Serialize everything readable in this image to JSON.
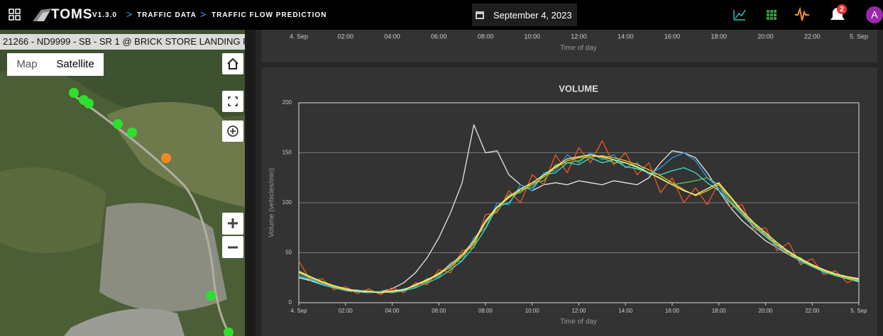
{
  "header": {
    "app": "TOMS",
    "version": "V1.3.0",
    "breadcrumbs": [
      "TRAFFIC DATA",
      "TRAFFIC FLOW PREDICTION"
    ],
    "date": "September 4, 2023",
    "notifications": 2,
    "avatar": "A"
  },
  "map_panel": {
    "station": "21266 - ND9999 - SB - SR 1 @ BRICK STORE LANDING R",
    "map_types": [
      "Map",
      "Satellite"
    ]
  },
  "top_chart": {
    "xlim": [
      0,
      24
    ],
    "xticks": [
      {
        "value": 0,
        "label": "4. Sep"
      },
      {
        "value": 2,
        "label": "02:00"
      },
      {
        "value": 4,
        "label": "04:00"
      },
      {
        "value": 6,
        "label": "06:00"
      },
      {
        "value": 8,
        "label": "08:00"
      },
      {
        "value": 10,
        "label": "10:00"
      },
      {
        "value": 12,
        "label": "12:00"
      },
      {
        "value": 14,
        "label": "14:00"
      },
      {
        "value": 16,
        "label": "16:00"
      },
      {
        "value": 18,
        "label": "18:00"
      },
      {
        "value": 20,
        "label": "20:00"
      },
      {
        "value": 22,
        "label": "22:00"
      },
      {
        "value": 24,
        "label": "5. Sep"
      }
    ],
    "xlabel": "Time of day"
  },
  "chart_data": {
    "type": "line",
    "title": "VOLUME",
    "ylabel": "Volume (vehicles/min)",
    "xlabel": "Time of day",
    "xlim": [
      0,
      24
    ],
    "ylim": [
      0,
      200
    ],
    "yticks": [
      0,
      50,
      100,
      150,
      200
    ],
    "xticks": [
      {
        "value": 0,
        "label": "4. Sep"
      },
      {
        "value": 2,
        "label": "02:00"
      },
      {
        "value": 4,
        "label": "04:00"
      },
      {
        "value": 6,
        "label": "06:00"
      },
      {
        "value": 8,
        "label": "08:00"
      },
      {
        "value": 10,
        "label": "10:00"
      },
      {
        "value": 12,
        "label": "12:00"
      },
      {
        "value": 14,
        "label": "14:00"
      },
      {
        "value": 16,
        "label": "16:00"
      },
      {
        "value": 18,
        "label": "18:00"
      },
      {
        "value": 20,
        "label": "20:00"
      },
      {
        "value": 22,
        "label": "22:00"
      },
      {
        "value": 24,
        "label": "5. Sep"
      }
    ],
    "grid": true,
    "x": [
      0,
      0.5,
      1,
      1.5,
      2,
      2.5,
      3,
      3.5,
      4,
      4.5,
      5,
      5.5,
      6,
      6.5,
      7,
      7.5,
      8,
      8.5,
      9,
      9.5,
      10,
      10.5,
      11,
      11.5,
      12,
      12.5,
      13,
      13.5,
      14,
      14.5,
      15,
      15.5,
      16,
      16.5,
      17,
      17.5,
      18,
      18.5,
      19,
      19.5,
      20,
      20.5,
      21,
      21.5,
      22,
      22.5,
      23,
      23.5,
      24
    ],
    "series": [
      {
        "color": "#e8e8e8",
        "values": [
          25,
          22,
          18,
          15,
          12,
          11,
          10,
          11,
          14,
          20,
          30,
          45,
          65,
          90,
          120,
          178,
          150,
          152,
          128,
          118,
          112,
          118,
          120,
          118,
          122,
          120,
          118,
          122,
          120,
          118,
          125,
          140,
          152,
          150,
          145,
          130,
          112,
          95,
          82,
          72,
          62,
          55,
          48,
          42,
          36,
          31,
          27,
          24,
          21
        ]
      },
      {
        "color": "#f05a1e",
        "values": [
          42,
          22,
          24,
          13,
          16,
          9,
          14,
          8,
          15,
          10,
          20,
          18,
          33,
          30,
          52,
          55,
          88,
          90,
          112,
          100,
          128,
          118,
          148,
          130,
          155,
          140,
          162,
          138,
          150,
          128,
          140,
          110,
          125,
          100,
          115,
          98,
          120,
          95,
          98,
          72,
          75,
          52,
          60,
          38,
          44,
          28,
          32,
          20,
          25
        ]
      },
      {
        "color": "#2a9be0",
        "values": [
          28,
          24,
          19,
          15,
          12,
          13,
          10,
          11,
          10,
          14,
          16,
          24,
          26,
          40,
          42,
          65,
          75,
          100,
          98,
          118,
          112,
          130,
          132,
          148,
          140,
          150,
          143,
          148,
          135,
          140,
          128,
          135,
          145,
          150,
          142,
          125,
          115,
          100,
          92,
          75,
          70,
          55,
          52,
          40,
          38,
          30,
          29,
          24,
          22
        ]
      },
      {
        "color": "#6cc04a",
        "values": [
          32,
          26,
          21,
          17,
          14,
          12,
          12,
          10,
          12,
          12,
          18,
          21,
          30,
          35,
          48,
          58,
          82,
          92,
          108,
          110,
          120,
          122,
          138,
          140,
          142,
          148,
          145,
          140,
          140,
          135,
          130,
          125,
          118,
          120,
          122,
          125,
          118,
          102,
          88,
          80,
          66,
          60,
          48,
          45,
          36,
          33,
          27,
          26,
          24
        ]
      },
      {
        "color": "#3fe0c8",
        "values": [
          26,
          23,
          18,
          15,
          13,
          11,
          11,
          11,
          10,
          12,
          15,
          20,
          25,
          33,
          42,
          56,
          74,
          96,
          100,
          114,
          115,
          128,
          130,
          140,
          138,
          145,
          140,
          143,
          136,
          134,
          130,
          128,
          132,
          135,
          130,
          120,
          112,
          100,
          88,
          76,
          66,
          57,
          50,
          42,
          36,
          31,
          27,
          24,
          22
        ]
      },
      {
        "color": "#f5c518",
        "values": [
          30,
          25,
          20,
          16,
          13,
          12,
          11,
          10,
          11,
          13,
          17,
          22,
          28,
          36,
          46,
          60,
          80,
          95,
          105,
          112,
          118,
          126,
          135,
          142,
          145,
          146,
          147,
          145,
          142,
          138,
          133,
          127,
          120,
          113,
          107,
          112,
          118,
          105,
          90,
          78,
          68,
          58,
          50,
          43,
          37,
          32,
          28,
          25,
          23
        ]
      },
      {
        "color": "#fff59a",
        "values": [
          31,
          26,
          21,
          17,
          14,
          12,
          11,
          10,
          12,
          13,
          18,
          23,
          29,
          38,
          48,
          62,
          82,
          96,
          106,
          114,
          120,
          128,
          136,
          144,
          146,
          148,
          146,
          143,
          140,
          136,
          130,
          124,
          118,
          112,
          108,
          114,
          120,
          106,
          92,
          80,
          70,
          60,
          51,
          44,
          38,
          33,
          29,
          26,
          24
        ]
      }
    ]
  }
}
